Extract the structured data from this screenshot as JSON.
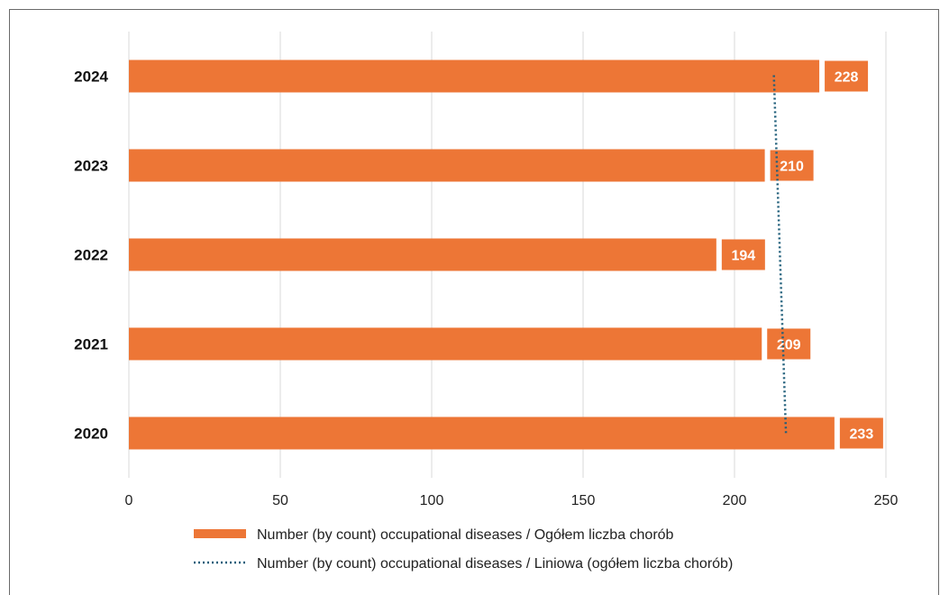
{
  "chart_data": {
    "type": "bar",
    "orientation": "horizontal",
    "categories": [
      "2024",
      "2023",
      "2022",
      "2021",
      "2020"
    ],
    "series": [
      {
        "name": "Number (by count) occupational diseases / Ogółem liczba chorób",
        "values": [
          228,
          210,
          194,
          209,
          233
        ],
        "color": "#ED7636"
      }
    ],
    "trendline": {
      "name": "Number (by count) occupational diseases / Liniowa (ogółem liczba chorób)",
      "start": 213,
      "end": 217,
      "color": "#1F5E7A",
      "style": "dotted"
    },
    "xlim": [
      0,
      250
    ],
    "xticks": [
      "0",
      "50",
      "100",
      "150",
      "200",
      "250"
    ],
    "xtick_values": [
      0,
      50,
      100,
      150,
      200,
      250
    ],
    "grid": "vertical",
    "legend_position": "bottom"
  }
}
